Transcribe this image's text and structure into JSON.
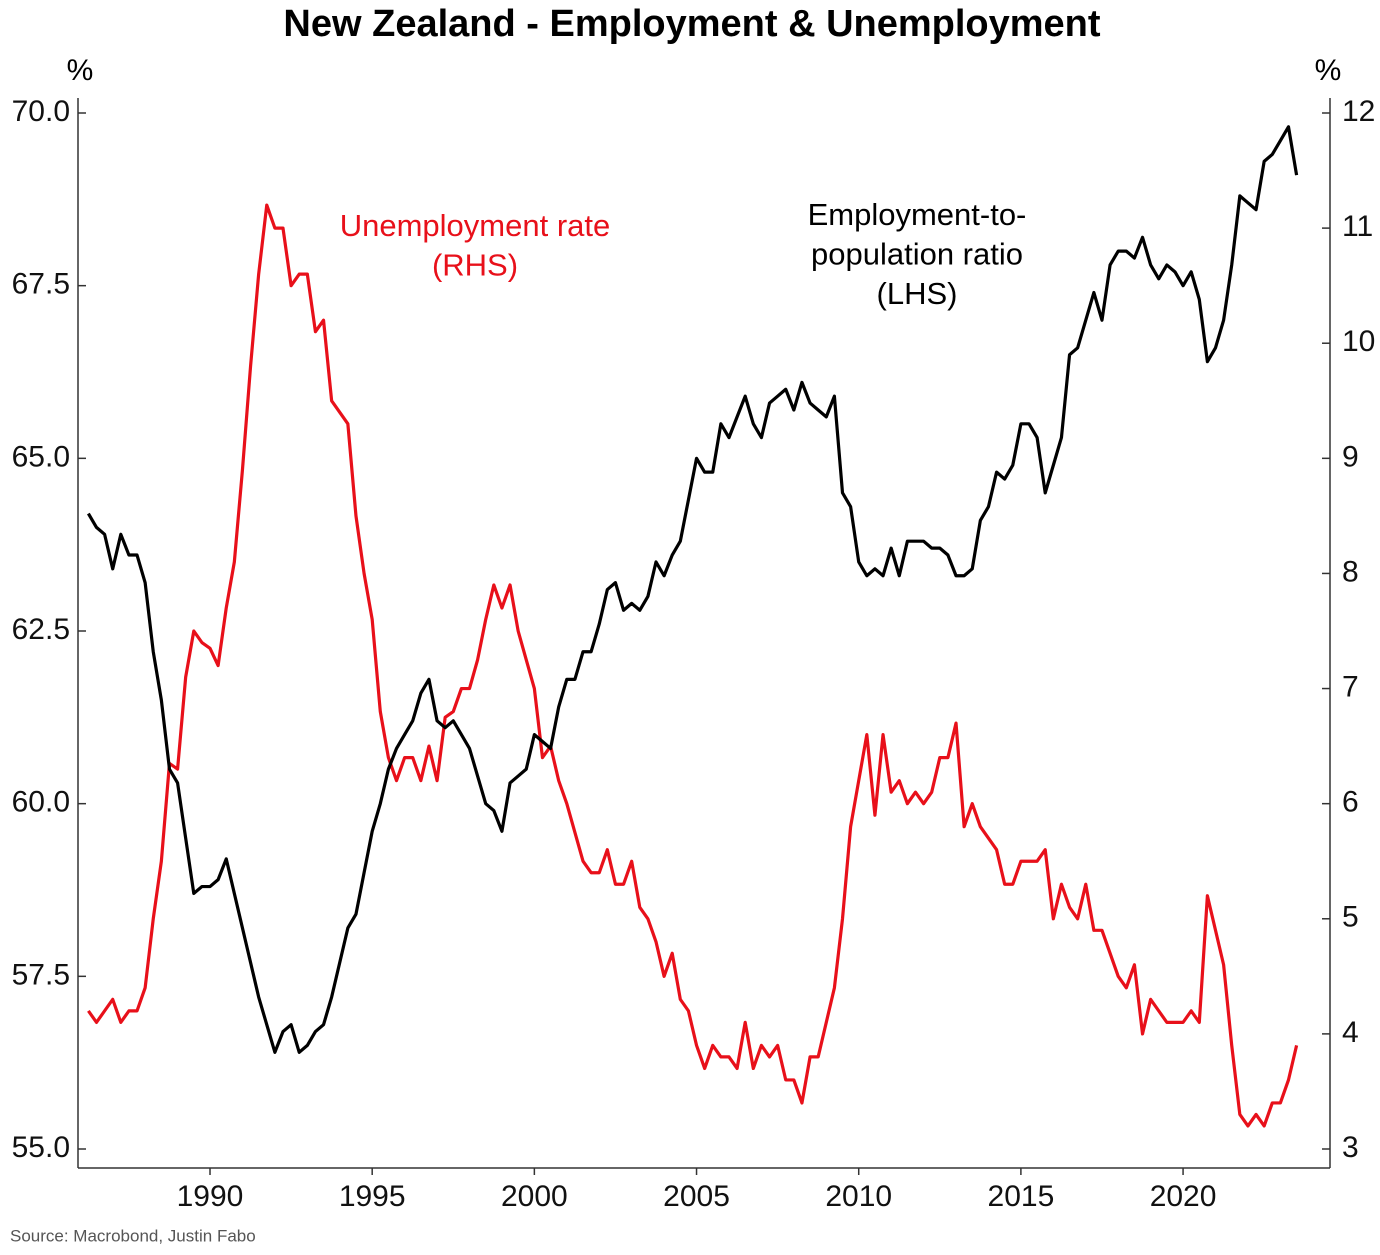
{
  "chart_data": {
    "type": "line",
    "title": "New Zealand - Employment & Unemployment",
    "y_unit": "%",
    "y2_unit": "%",
    "source": "Source: Macrobond, Justin Fabo",
    "annotations": [
      {
        "lines": [
          "Unemployment rate",
          "(RHS)"
        ],
        "color": "#e8101a"
      },
      {
        "lines": [
          "Employment-to-",
          "population ratio",
          "(LHS)"
        ],
        "color": "#000000"
      }
    ],
    "x": [
      1986.25,
      1986.5,
      1986.75,
      1987,
      1987.25,
      1987.5,
      1987.75,
      1988,
      1988.25,
      1988.5,
      1988.75,
      1989,
      1989.25,
      1989.5,
      1989.75,
      1990,
      1990.25,
      1990.5,
      1990.75,
      1991,
      1991.25,
      1991.5,
      1991.75,
      1992,
      1992.25,
      1992.5,
      1992.75,
      1993,
      1993.25,
      1993.5,
      1993.75,
      1994,
      1994.25,
      1994.5,
      1994.75,
      1995,
      1995.25,
      1995.5,
      1995.75,
      1996,
      1996.25,
      1996.5,
      1996.75,
      1997,
      1997.25,
      1997.5,
      1997.75,
      1998,
      1998.25,
      1998.5,
      1998.75,
      1999,
      1999.25,
      1999.5,
      1999.75,
      2000,
      2000.25,
      2000.5,
      2000.75,
      2001,
      2001.25,
      2001.5,
      2001.75,
      2002,
      2002.25,
      2002.5,
      2002.75,
      2003,
      2003.25,
      2003.5,
      2003.75,
      2004,
      2004.25,
      2004.5,
      2004.75,
      2005,
      2005.25,
      2005.5,
      2005.75,
      2006,
      2006.25,
      2006.5,
      2006.75,
      2007,
      2007.25,
      2007.5,
      2007.75,
      2008,
      2008.25,
      2008.5,
      2008.75,
      2009,
      2009.25,
      2009.5,
      2009.75,
      2010,
      2010.25,
      2010.5,
      2010.75,
      2011,
      2011.25,
      2011.5,
      2011.75,
      2012,
      2012.25,
      2012.5,
      2012.75,
      2013,
      2013.25,
      2013.5,
      2013.75,
      2014,
      2014.25,
      2014.5,
      2014.75,
      2015,
      2015.25,
      2015.5,
      2015.75,
      2016,
      2016.25,
      2016.5,
      2016.75,
      2017,
      2017.25,
      2017.5,
      2017.75,
      2018,
      2018.25,
      2018.5,
      2018.75,
      2019,
      2019.25,
      2019.5,
      2019.75,
      2020,
      2020.25,
      2020.5,
      2020.75,
      2021,
      2021.25,
      2021.5,
      2021.75,
      2022,
      2022.25,
      2022.5,
      2022.75,
      2023,
      2023.25,
      2023.5
    ],
    "series": [
      {
        "name": "Unemployment rate (RHS)",
        "color": "#e8101a",
        "axis": "y2",
        "values": [
          4.2,
          4.1,
          4.2,
          4.3,
          4.1,
          4.2,
          4.2,
          4.4,
          5.0,
          5.5,
          6.35,
          6.3,
          7.1,
          7.5,
          7.4,
          7.35,
          7.2,
          7.7,
          8.1,
          8.9,
          9.8,
          10.6,
          11.2,
          11.0,
          11.0,
          10.5,
          10.6,
          10.6,
          10.1,
          10.2,
          9.5,
          9.4,
          9.3,
          8.5,
          8.0,
          7.6,
          6.8,
          6.4,
          6.2,
          6.4,
          6.4,
          6.2,
          6.5,
          6.2,
          6.75,
          6.8,
          7.0,
          7.0,
          7.25,
          7.6,
          7.9,
          7.7,
          7.9,
          7.5,
          7.25,
          7.0,
          6.4,
          6.5,
          6.2,
          6.0,
          5.75,
          5.5,
          5.4,
          5.4,
          5.6,
          5.3,
          5.3,
          5.5,
          5.1,
          5.0,
          4.8,
          4.5,
          4.7,
          4.3,
          4.2,
          3.9,
          3.7,
          3.9,
          3.8,
          3.8,
          3.7,
          4.1,
          3.7,
          3.9,
          3.8,
          3.9,
          3.6,
          3.6,
          3.4,
          3.8,
          3.8,
          4.1,
          4.4,
          5.0,
          5.8,
          6.2,
          6.6,
          5.9,
          6.6,
          6.1,
          6.2,
          6.0,
          6.1,
          6.0,
          6.1,
          6.4,
          6.4,
          6.7,
          5.8,
          6.0,
          5.8,
          5.7,
          5.6,
          5.3,
          5.3,
          5.5,
          5.5,
          5.5,
          5.6,
          5.0,
          5.3,
          5.1,
          5.0,
          5.3,
          4.9,
          4.9,
          4.7,
          4.5,
          4.4,
          4.6,
          4.0,
          4.3,
          4.2,
          4.1,
          4.1,
          4.1,
          4.2,
          4.1,
          5.2,
          4.9,
          4.6,
          3.9,
          3.3,
          3.2,
          3.3,
          3.2,
          3.4,
          3.4,
          3.6,
          3.9
        ]
      },
      {
        "name": "Employment-to-population ratio (LHS)",
        "color": "#000000",
        "axis": "y",
        "values": [
          64.2,
          64.0,
          63.9,
          63.4,
          63.9,
          63.6,
          63.6,
          63.2,
          62.2,
          61.5,
          60.5,
          60.3,
          59.5,
          58.7,
          58.8,
          58.8,
          58.9,
          59.2,
          58.7,
          58.2,
          57.7,
          57.2,
          56.8,
          56.4,
          56.7,
          56.8,
          56.4,
          56.5,
          56.7,
          56.8,
          57.2,
          57.7,
          58.2,
          58.4,
          59.0,
          59.6,
          60.0,
          60.5,
          60.8,
          61.0,
          61.2,
          61.6,
          61.8,
          61.2,
          61.1,
          61.2,
          61.0,
          60.8,
          60.4,
          60.0,
          59.9,
          59.6,
          60.3,
          60.4,
          60.5,
          61.0,
          60.9,
          60.8,
          61.4,
          61.8,
          61.8,
          62.2,
          62.2,
          62.6,
          63.1,
          63.2,
          62.8,
          62.9,
          62.8,
          63.0,
          63.5,
          63.3,
          63.6,
          63.8,
          64.4,
          65.0,
          64.8,
          64.8,
          65.5,
          65.3,
          65.6,
          65.9,
          65.5,
          65.3,
          65.8,
          65.9,
          66.0,
          65.7,
          66.1,
          65.8,
          65.7,
          65.6,
          65.9,
          64.5,
          64.3,
          63.5,
          63.3,
          63.4,
          63.3,
          63.7,
          63.3,
          63.8,
          63.8,
          63.8,
          63.7,
          63.7,
          63.6,
          63.3,
          63.3,
          63.4,
          64.1,
          64.3,
          64.8,
          64.7,
          64.9,
          65.5,
          65.5,
          65.3,
          64.5,
          64.9,
          65.3,
          66.5,
          66.6,
          67.0,
          67.4,
          67.0,
          67.8,
          68.0,
          68.0,
          67.9,
          68.2,
          67.8,
          67.6,
          67.8,
          67.7,
          67.5,
          67.7,
          67.3,
          66.4,
          66.6,
          67.0,
          67.8,
          68.8,
          68.7,
          68.6,
          69.3,
          69.4,
          69.6,
          69.8,
          69.1
        ]
      }
    ],
    "xlim": [
      1985.93,
      2024.53
    ],
    "xticks": [
      1990,
      1995,
      2000,
      2005,
      2010,
      2015,
      2020
    ],
    "ylim": [
      55,
      70
    ],
    "yticks": [
      {
        "value": 55,
        "label": "55.0"
      },
      {
        "value": 57.5,
        "label": "57.5"
      },
      {
        "value": 60,
        "label": "60.0"
      },
      {
        "value": 62.5,
        "label": "62.5"
      },
      {
        "value": 65,
        "label": "65.0"
      },
      {
        "value": 67.5,
        "label": "67.5"
      },
      {
        "value": 70,
        "label": "70.0"
      }
    ],
    "y2lim": [
      3,
      12
    ],
    "y2ticks": [
      3,
      4,
      5,
      6,
      7,
      8,
      9,
      10,
      11,
      12
    ],
    "grid": false
  }
}
